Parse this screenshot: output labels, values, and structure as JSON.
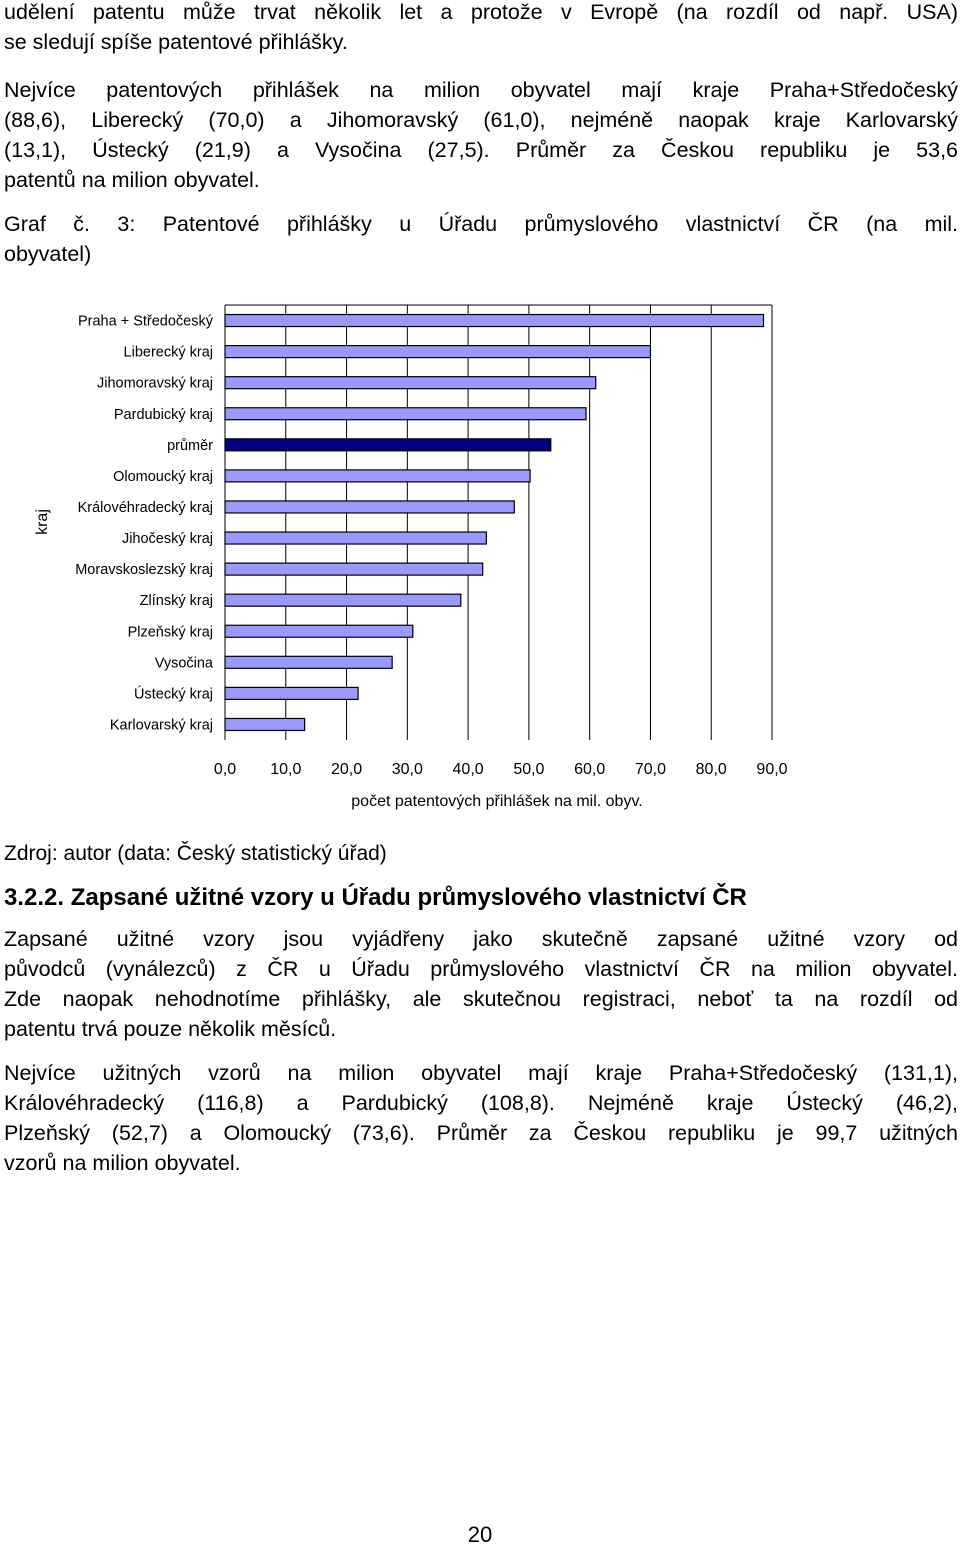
{
  "intro": {
    "lines": [
      "udělení patentu může trvat několik let  a protože v Evropě (na rozdíl od např. USA)",
      "se sledují spíše patentové přihlášky."
    ]
  },
  "summary": {
    "lines": [
      "Nejvíce patentových přihlášek na milion obyvatel mají kraje Praha+Středočeský",
      "(88,6), Liberecký (70,0) a Jihomoravský (61,0), nejméně naopak kraje Karlovarský",
      "(13,1), Ústecký (21,9) a Vysočina (27,5). Průměr za Českou republiku je 53,6",
      "patentů na milion obyvatel."
    ]
  },
  "caption": {
    "lines": [
      "Graf č. 3: Patentové přihlášky u Úřadu průmyslového vlastnictví ČR (na mil.",
      "obyvatel)"
    ]
  },
  "source": "Zdroj: autor (data: Český statistický úřad)",
  "section": {
    "heading": "3.2.2. Zapsané užitné vzory u Úřadu průmyslového vlastnictví ČR",
    "para1": [
      "Zapsané užitné vzory jsou vyjádřeny jako skutečně zapsané užitné vzory od",
      "původců (vynálezců) z ČR u Úřadu průmyslového vlastnictví ČR na milion obyvatel.",
      "Zde naopak nehodnotíme přihlášky, ale skutečnou registraci, neboť ta na rozdíl od",
      "patentu trvá pouze několik měsíců."
    ],
    "para2": [
      "Nejvíce užitných vzorů na milion obyvatel mají kraje Praha+Středočeský (131,1),",
      "Královéhradecký (116,8) a Pardubický (108,8). Nejméně kraje Ústecký (46,2),",
      "Plzeňský (52,7) a Olomoucký (73,6). Průměr za Českou republiku je 99,7 užitných",
      "vzorů na milion obyvatel."
    ]
  },
  "page_number": "20",
  "chart_data": {
    "type": "bar",
    "orientation": "horizontal",
    "categories": [
      "Praha + Středočeský",
      "Liberecký kraj",
      "Jihomoravský kraj",
      "Pardubický kraj",
      "průměr",
      "Olomoucký kraj",
      "Královéhradecký kraj",
      "Jihočeský kraj",
      "Moravskoslezský kraj",
      "Zlínský kraj",
      "Plzeňský kraj",
      "Vysočina",
      "Ústecký kraj",
      "Karlovarský kraj"
    ],
    "values": [
      88.6,
      70.0,
      61.0,
      59.4,
      53.6,
      50.2,
      47.6,
      43.0,
      42.4,
      38.8,
      30.9,
      27.5,
      21.9,
      13.1
    ],
    "highlight_category": "průměr",
    "colors": {
      "bar_fill": "#9999ff",
      "highlight_fill": "#000080",
      "bar_stroke": "#000000",
      "grid": "#000000"
    },
    "xlabel": "počet patentových přihlášek na mil. obyv.",
    "ylabel": "kraj",
    "xlim": [
      0,
      90
    ],
    "xticks": [
      "0,0",
      "10,0",
      "20,0",
      "30,0",
      "40,0",
      "50,0",
      "60,0",
      "70,0",
      "80,0",
      "90,0"
    ],
    "grid": true,
    "legend": "none"
  }
}
